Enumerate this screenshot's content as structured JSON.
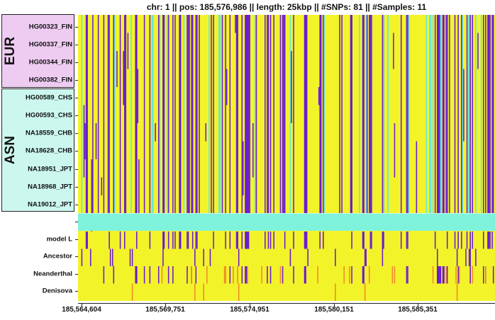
{
  "chart_data": {
    "type": "heatmap",
    "title": "chr: 1  ||  pos: 185,576,986  ||  length: 25kbp  ||  #SNPs: 81  ||  #Samples: 11",
    "groups": [
      {
        "name": "EUR",
        "color": "#eeccf2",
        "samples": [
          "HG00323_FIN",
          "HG00337_FIN",
          "HG00344_FIN",
          "HG00382_FIN"
        ]
      },
      {
        "name": "ASN",
        "color": "#ccf7ee",
        "samples": [
          "HG00589_CHS",
          "HG00593_CHS",
          "NA18559_CHB",
          "NA18628_CHB",
          "NA18951_JPT",
          "NA18968_JPT",
          "NA19012_JPT"
        ]
      }
    ],
    "reference_rows": [
      "model L",
      "Ancestor",
      "Neanderthal",
      "Denisova"
    ],
    "x_ticks": [
      "185,564,604",
      "185,569,751",
      "185,574,951",
      "185,580,151",
      "185,585,351"
    ],
    "x_tick_values": [
      185564604,
      185569751,
      185574951,
      185580151,
      185585351
    ],
    "xlim": [
      185564604,
      185591000
    ],
    "colors": {
      "background": "#f3f32a",
      "derived": "#6a1cd0",
      "missing": "#5ee8dc",
      "archaic_het": "#f08a28",
      "separator": "#7ff2dc"
    }
  }
}
